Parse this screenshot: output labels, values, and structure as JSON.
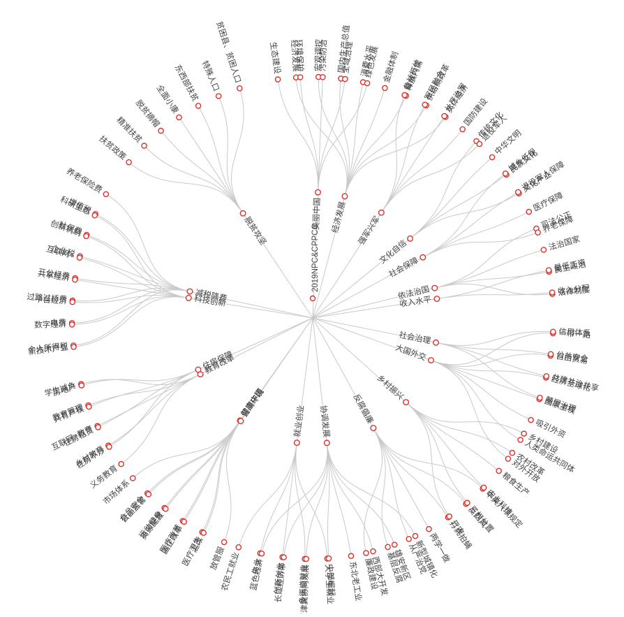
{
  "root": "2019NPC&CPPCC",
  "colors": {
    "node_stroke": "#d9342b",
    "link": "#c9c9c9",
    "text": "#444444"
  },
  "branches": [
    {
      "name": "经济发展",
      "children": [
        "经济发展",
        "宏观调控",
        "国内生产总值",
        "消费水平",
        "金融体制",
        "释放内需",
        "供给侧改革",
        "实体经济"
      ]
    },
    {
      "name": "文化自信",
      "children": [
        "传统文化",
        "中华文明",
        "民族文化",
        "文化产业"
      ]
    },
    {
      "name": "依法治国",
      "children": [
        "司法公正",
        "法治国家",
        "民主政治",
        "法律制度"
      ]
    },
    {
      "name": "大国外交",
      "children": [
        "一带一路",
        "自由贸易",
        "经济全球化",
        "国家主权",
        "吸引外资",
        "人类命运共同体",
        "对外开放"
      ]
    },
    {
      "name": "反腐倡廉",
      "children": [
        "中央八项规定",
        "反四风",
        "打虎拍蝇",
        "两学一做",
        "从严治党",
        "基层反腐",
        "廉政建设"
      ]
    },
    {
      "name": "就业创业",
      "children": [
        "大学生就业",
        "多渠道就业",
        "创新创业",
        "失业",
        "农民工就业"
      ]
    },
    {
      "name": "健康中国",
      "children": [
        "医疗卫生",
        "医疗改革",
        "运动健身",
        "食品安全"
      ]
    },
    {
      "name": "教育改革",
      "children": [
        "义务教育",
        "乡村教育",
        "互联网+教育",
        "教育管理",
        "学生减负"
      ]
    },
    {
      "name": "减税降费",
      "children": [
        "个人所得税",
        "电费",
        "过路过桥费",
        "三公经费",
        "企业税",
        "社保费",
        "增值税",
        "养老保险费"
      ]
    },
    {
      "name": "脱贫攻坚",
      "children": [
        "扶贫政策",
        "精准扶贫",
        "脱贫摘帽",
        "全面小康",
        "东西部扶贫",
        "特殊人口",
        "贫困县、贫困人口"
      ]
    },
    {
      "name": "美丽中国",
      "children": [
        "生态建设",
        "环境保护",
        "污染防治",
        "全域治理",
        "绿色发展"
      ]
    },
    {
      "name": "强军兴军",
      "children": [
        "备战打仗",
        "军民融合",
        "从严治军",
        "国防建设",
        "退役军人"
      ]
    },
    {
      "name": "社会保障",
      "children": [
        "城乡低保",
        "退役军人保障",
        "医疗保障",
        "养老保障"
      ]
    },
    {
      "name": "收入水平",
      "children": [
        "最低工资",
        "收入分配"
      ]
    },
    {
      "name": "社会治理",
      "children": [
        "信用体系",
        "公共安全",
        "共建共治共享",
        "基层治理"
      ]
    },
    {
      "name": "乡村振兴",
      "children": [
        "乡村建设",
        "农村改革",
        "粮食生产",
        "农业科技",
        "三权分置",
        "三农"
      ]
    },
    {
      "name": "协调发展",
      "children": [
        "新型城镇化",
        "雄安新区",
        "西部大开发",
        "东北老工业",
        "中部崛起",
        "京津冀协同发展",
        "长江经济带",
        "蓝色经济"
      ]
    },
    {
      "name": "营商环境",
      "children": [
        "放管服",
        "混改",
        "国企改革",
        "资源配置",
        "公正监管",
        "市场体系"
      ]
    },
    {
      "name": "住房保障",
      "children": [
        "住房不炒",
        "住房租赁",
        "共有产权",
        "房地产"
      ]
    },
    {
      "name": "科技创新",
      "children": [
        "新技术产业",
        "数字经济",
        "平台经济",
        "共享经济",
        "互联网+",
        "创新机制",
        "科研生态"
      ]
    }
  ]
}
